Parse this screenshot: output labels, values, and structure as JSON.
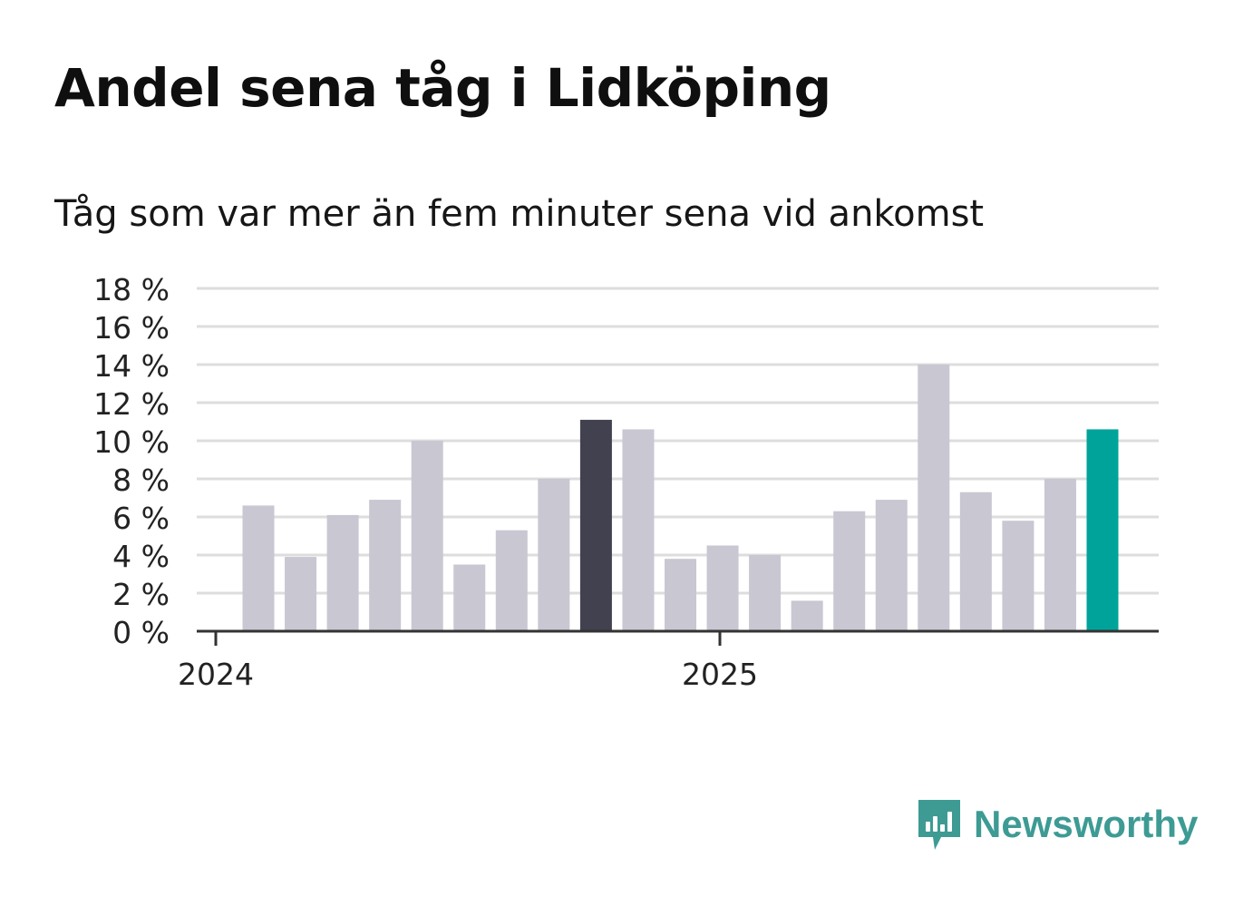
{
  "title": "Andel sena tåg i Lidköping",
  "subtitle": "Tåg som var mer än fem minuter sena vid ankomst",
  "brand": {
    "name": "Newsworthy",
    "icon": "newsworthy-logo-icon",
    "color": "#3d9b94"
  },
  "colors": {
    "default_bar": "#c8c7d2",
    "highlight_bar": "#42414f",
    "latest_bar": "#00a39a",
    "grid": "#dddddd",
    "axis": "#333333"
  },
  "chart_data": {
    "type": "bar",
    "x_tick_labels": [
      "2024",
      "2025"
    ],
    "y_tick_labels": [
      "0 %",
      "2 %",
      "4 %",
      "6 %",
      "8 %",
      "10 %",
      "12 %",
      "14 %",
      "16 %",
      "18 %"
    ],
    "ylim": [
      0,
      18
    ],
    "grid": true,
    "values": [
      6.6,
      3.9,
      6.1,
      6.9,
      10.0,
      3.5,
      5.3,
      8.0,
      11.1,
      10.6,
      3.8,
      4.5,
      4.0,
      1.6,
      6.3,
      6.9,
      14.0,
      7.3,
      5.8,
      8.0,
      10.6
    ],
    "highlight_index": 8,
    "latest_index": 20
  }
}
